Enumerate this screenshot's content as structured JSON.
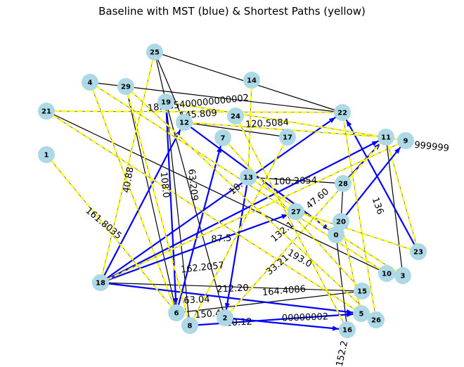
{
  "title": "Baseline with MST (blue) & Shortest Paths (yellow)",
  "colors": {
    "node": "#add8e6",
    "base_edge": "#000000",
    "mst_edge": "#0000ff",
    "path_edge": "#ffff00"
  },
  "nodes": [
    "0",
    "1",
    "2",
    "3",
    "4",
    "5",
    "6",
    "7",
    "8",
    "9",
    "10",
    "11",
    "12",
    "13",
    "14",
    "15",
    "16",
    "17",
    "18",
    "19",
    "20",
    "21",
    "22",
    "23",
    "24",
    "25",
    "26",
    "27",
    "28",
    "29"
  ],
  "edges": [
    {
      "u": "25",
      "v": "22",
      "kind": "base"
    },
    {
      "u": "25",
      "v": "19",
      "kind": "base"
    },
    {
      "u": "25",
      "v": "12",
      "kind": "base"
    },
    {
      "u": "19",
      "v": "8",
      "kind": "base"
    },
    {
      "u": "19",
      "v": "2",
      "kind": "base"
    },
    {
      "u": "4",
      "v": "22",
      "kind": "base"
    },
    {
      "u": "29",
      "v": "6",
      "kind": "base"
    },
    {
      "u": "21",
      "v": "10",
      "kind": "base"
    },
    {
      "u": "12",
      "v": "17",
      "kind": "base"
    },
    {
      "u": "13",
      "v": "28",
      "kind": "base"
    },
    {
      "u": "18",
      "v": "15",
      "kind": "base"
    },
    {
      "u": "6",
      "v": "15",
      "kind": "base"
    },
    {
      "u": "28",
      "v": "20",
      "kind": "base"
    },
    {
      "u": "0",
      "v": "16",
      "kind": "base"
    },
    {
      "u": "11",
      "v": "3",
      "kind": "base"
    },
    {
      "u": "18",
      "v": "27",
      "kind": "mst"
    },
    {
      "u": "18",
      "v": "22",
      "kind": "mst"
    },
    {
      "u": "18",
      "v": "11",
      "kind": "mst"
    },
    {
      "u": "18",
      "v": "12",
      "kind": "mst"
    },
    {
      "u": "18",
      "v": "5",
      "kind": "mst"
    },
    {
      "u": "6",
      "v": "7",
      "kind": "mst"
    },
    {
      "u": "8",
      "v": "5",
      "kind": "mst"
    },
    {
      "u": "2",
      "v": "16",
      "kind": "mst"
    },
    {
      "u": "13",
      "v": "2",
      "kind": "mst"
    },
    {
      "u": "23",
      "v": "22",
      "kind": "mst"
    },
    {
      "u": "28",
      "v": "11",
      "kind": "mst"
    },
    {
      "u": "20",
      "v": "9",
      "kind": "mst"
    },
    {
      "u": "19",
      "v": "6",
      "kind": "mst"
    },
    {
      "u": "12",
      "v": "0",
      "kind": "mst"
    },
    {
      "u": "25",
      "v": "18",
      "kind": "path"
    },
    {
      "u": "4",
      "v": "6",
      "kind": "path"
    },
    {
      "u": "29",
      "v": "8",
      "kind": "path"
    },
    {
      "u": "21",
      "v": "22",
      "kind": "path"
    },
    {
      "u": "21",
      "v": "5",
      "kind": "path"
    },
    {
      "u": "1",
      "v": "6",
      "kind": "path"
    },
    {
      "u": "12",
      "v": "11",
      "kind": "path"
    },
    {
      "u": "19",
      "v": "9",
      "kind": "path"
    },
    {
      "u": "14",
      "v": "13",
      "kind": "path"
    },
    {
      "u": "18",
      "v": "9",
      "kind": "path"
    },
    {
      "u": "2",
      "v": "11",
      "kind": "path"
    },
    {
      "u": "24",
      "v": "16",
      "kind": "path"
    },
    {
      "u": "4",
      "v": "10",
      "kind": "path"
    },
    {
      "u": "22",
      "v": "26",
      "kind": "path"
    },
    {
      "u": "13",
      "v": "3",
      "kind": "path"
    },
    {
      "u": "27",
      "v": "23",
      "kind": "path"
    },
    {
      "u": "7",
      "v": "15",
      "kind": "path"
    },
    {
      "u": "17",
      "v": "8",
      "kind": "path"
    },
    {
      "u": "29",
      "v": "26",
      "kind": "path"
    },
    {
      "u": "20",
      "v": "5",
      "kind": "path"
    },
    {
      "u": "11",
      "v": "23",
      "kind": "path"
    }
  ],
  "edge_labels": [
    "18.885400000000002",
    "145.809",
    "120.5084",
    "100.2054",
    "161.8035",
    "108.0",
    "63.209",
    "87.5",
    "162.2057",
    "212.20",
    "164.4086",
    "63.04",
    "150.41",
    "20.12",
    "00000002",
    "193.0",
    "132.1",
    "136",
    "999999",
    "10.",
    "40.88",
    "33.21",
    "47.60",
    "152.2"
  ]
}
